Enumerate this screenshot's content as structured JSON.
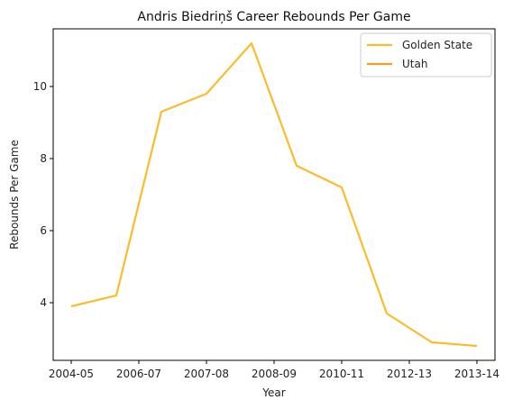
{
  "chart_data": {
    "type": "line",
    "title": "Andris Biedriņš Career Rebounds Per Game",
    "xlabel": "Year",
    "ylabel": "Rebounds Per Game",
    "x_tick_labels": [
      "2004-05",
      "2006-07",
      "2007-08",
      "2008-09",
      "2010-11",
      "2012-13",
      "2013-14"
    ],
    "y_ticks": [
      4,
      6,
      8,
      10
    ],
    "ylim": [
      2.4,
      11.6
    ],
    "grid": false,
    "legend_position": "top-right",
    "series": [
      {
        "name": "Golden State",
        "color": "#fbbc2a",
        "x": [
          0,
          1,
          2,
          3,
          4,
          5,
          6,
          7,
          8,
          9
        ],
        "values": [
          3.9,
          4.2,
          9.3,
          9.8,
          11.2,
          7.8,
          7.2,
          3.7,
          2.9,
          2.8
        ]
      },
      {
        "name": "Utah",
        "color": "#f79c1e",
        "x": [],
        "values": []
      }
    ]
  }
}
